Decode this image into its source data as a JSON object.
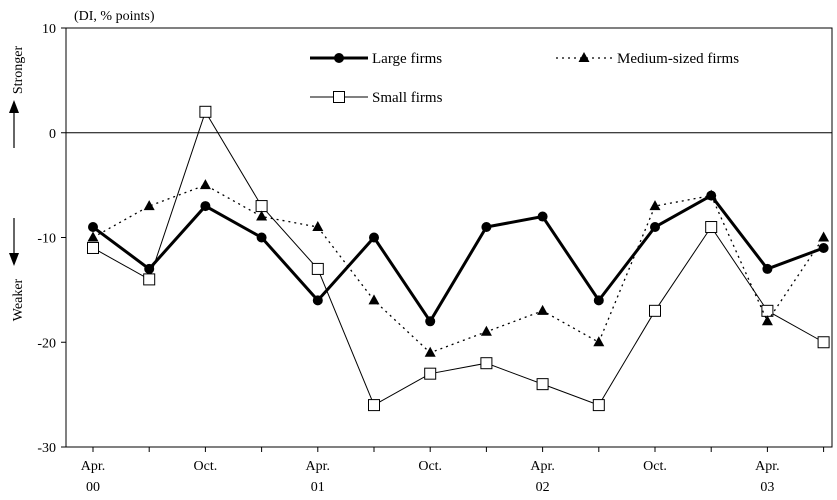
{
  "chart_data": {
    "type": "line",
    "unit_label": "(DI, % points)",
    "stronger_label": "Stronger",
    "weaker_label": "Weaker",
    "ylim": [
      -30,
      10
    ],
    "yticks": [
      "10",
      "0",
      "-10",
      "-20",
      "-30"
    ],
    "x_tick_labels": [
      {
        "index": 0,
        "month": "Apr.",
        "year": "00"
      },
      {
        "index": 2,
        "month": "Oct.",
        "year": ""
      },
      {
        "index": 4,
        "month": "Apr.",
        "year": "01"
      },
      {
        "index": 6,
        "month": "Oct.",
        "year": ""
      },
      {
        "index": 8,
        "month": "Apr.",
        "year": "02"
      },
      {
        "index": 10,
        "month": "Oct.",
        "year": ""
      },
      {
        "index": 12,
        "month": "Apr.",
        "year": "03"
      }
    ],
    "series": [
      {
        "name": "Large firms",
        "style": "solid-thick",
        "marker": "circle",
        "color": "#000000",
        "values": [
          -9,
          -13,
          -7,
          -10,
          -16,
          -10,
          -18,
          -9,
          -8,
          -16,
          -9,
          -6,
          -13,
          -11
        ]
      },
      {
        "name": "Medium-sized firms",
        "style": "dotted",
        "marker": "triangle",
        "color": "#000000",
        "values": [
          -10,
          -7,
          -5,
          -8,
          -9,
          -16,
          -21,
          -19,
          -17,
          -20,
          -7,
          -6,
          -18,
          -10
        ]
      },
      {
        "name": "Small firms",
        "style": "solid-thin",
        "marker": "square",
        "color": "#000000",
        "values": [
          -11,
          -14,
          2,
          -7,
          -13,
          -26,
          -23,
          -22,
          -24,
          -26,
          -17,
          -9,
          -17,
          -20
        ]
      }
    ],
    "legend": [
      {
        "name": "Large firms"
      },
      {
        "name": "Medium-sized firms"
      },
      {
        "name": "Small firms"
      }
    ]
  }
}
